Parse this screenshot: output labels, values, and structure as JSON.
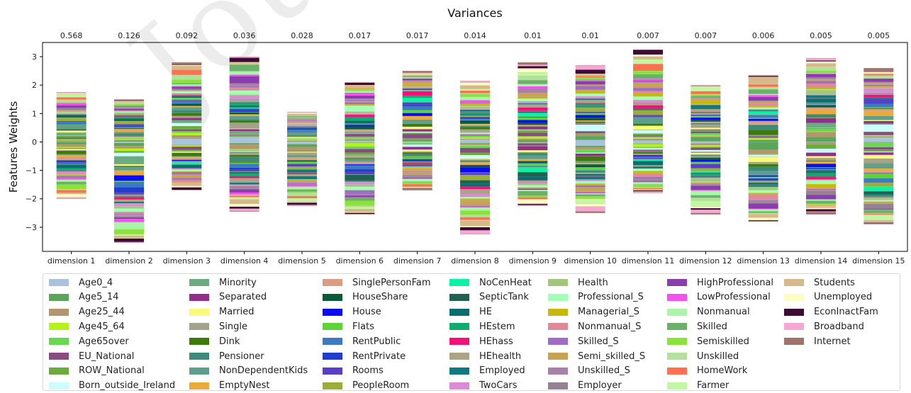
{
  "chart_data": {
    "type": "bar",
    "title": "Variances",
    "ylabel": "Features Weights",
    "xlabel": "",
    "ylim": [
      -3.85,
      3.5
    ],
    "yticks": [
      -3,
      -2,
      -1,
      0,
      1,
      2,
      3
    ],
    "categories": [
      "dimension 1",
      "dimension 2",
      "dimension 3",
      "dimension 4",
      "dimension 5",
      "dimension 6",
      "dimension 7",
      "dimension 8",
      "dimension 9",
      "dimension 10",
      "dimension 11",
      "dimension 12",
      "dimension 13",
      "dimension 14",
      "dimension 15"
    ],
    "variances": [
      "0.568",
      "0.126",
      "0.092",
      "0.036",
      "0.028",
      "0.017",
      "0.017",
      "0.014",
      "0.01",
      "0.01",
      "0.007",
      "0.007",
      "0.006",
      "0.005",
      "0.005"
    ],
    "legend_placement": "bottom",
    "grid": false,
    "stack_extents": [
      {
        "pos": 1.75,
        "neg": -2.0
      },
      {
        "pos": 1.5,
        "neg": -3.55
      },
      {
        "pos": 2.8,
        "neg": -1.7
      },
      {
        "pos": 3.0,
        "neg": -2.45
      },
      {
        "pos": 1.05,
        "neg": -2.25
      },
      {
        "pos": 2.1,
        "neg": -2.55
      },
      {
        "pos": 2.5,
        "neg": -1.7
      },
      {
        "pos": 2.15,
        "neg": -3.25
      },
      {
        "pos": 2.8,
        "neg": -2.25
      },
      {
        "pos": 2.7,
        "neg": -2.5
      },
      {
        "pos": 3.25,
        "neg": -1.8
      },
      {
        "pos": 2.0,
        "neg": -2.55
      },
      {
        "pos": 2.35,
        "neg": -2.8
      },
      {
        "pos": 2.95,
        "neg": -2.55
      },
      {
        "pos": 2.6,
        "neg": -2.9
      }
    ],
    "series": [
      {
        "name": "Age0_4",
        "color": "#a9c2de"
      },
      {
        "name": "Age5_14",
        "color": "#5aa55a"
      },
      {
        "name": "Age25_44",
        "color": "#b2976e"
      },
      {
        "name": "Age45_64",
        "color": "#b4f21a"
      },
      {
        "name": "Age65over",
        "color": "#66d94f"
      },
      {
        "name": "EU_National",
        "color": "#8a4a82"
      },
      {
        "name": "ROW_National",
        "color": "#6cab3c"
      },
      {
        "name": "Born_outside_Ireland",
        "color": "#ccfcfc"
      },
      {
        "name": "Minority",
        "color": "#6bab80"
      },
      {
        "name": "Separated",
        "color": "#942e8c"
      },
      {
        "name": "Married",
        "color": "#fafa7a"
      },
      {
        "name": "Single",
        "color": "#a3a38c"
      },
      {
        "name": "Dink",
        "color": "#3d7a0a"
      },
      {
        "name": "Pensioner",
        "color": "#3d8a7a"
      },
      {
        "name": "NonDependentKids",
        "color": "#5e9e8c"
      },
      {
        "name": "EmptyNest",
        "color": "#ebab38"
      },
      {
        "name": "SinglePersonFam",
        "color": "#db9c82"
      },
      {
        "name": "HouseShare",
        "color": "#0a5c38"
      },
      {
        "name": "House",
        "color": "#0a0af5"
      },
      {
        "name": "Flats",
        "color": "#5cd633"
      },
      {
        "name": "RentPublic",
        "color": "#3d7ac4"
      },
      {
        "name": "RentPrivate",
        "color": "#1f3dd1"
      },
      {
        "name": "Rooms",
        "color": "#5c3dc7"
      },
      {
        "name": "PeopleRoom",
        "color": "#9cad38"
      },
      {
        "name": "NoCenHeat",
        "color": "#0af2a3"
      },
      {
        "name": "SepticTank",
        "color": "#1f6152"
      },
      {
        "name": "HE",
        "color": "#0a6e6e"
      },
      {
        "name": "HEstem",
        "color": "#0fab6e"
      },
      {
        "name": "HEhass",
        "color": "#f50f7a"
      },
      {
        "name": "HEhealth",
        "color": "#ada385"
      },
      {
        "name": "Employed",
        "color": "#0f7a80"
      },
      {
        "name": "TwoCars",
        "color": "#db8ad6"
      },
      {
        "name": "Health",
        "color": "#a3c77a"
      },
      {
        "name": "Professional_S",
        "color": "#a3ffb8"
      },
      {
        "name": "Managerial_S",
        "color": "#c7b80a"
      },
      {
        "name": "Nonmanual_S",
        "color": "#e08a99"
      },
      {
        "name": "Skilled_S",
        "color": "#9e6ec7"
      },
      {
        "name": "Semi_skilled_S",
        "color": "#c7a352"
      },
      {
        "name": "Unskilled_S",
        "color": "#a880a8"
      },
      {
        "name": "Employer",
        "color": "#948294"
      },
      {
        "name": "HighProfessional",
        "color": "#8a3dad"
      },
      {
        "name": "LowProfessional",
        "color": "#f54ff0"
      },
      {
        "name": "Nonmanual",
        "color": "#abf5ab"
      },
      {
        "name": "Skilled",
        "color": "#6bb06b"
      },
      {
        "name": "Semiskilled",
        "color": "#8ae338"
      },
      {
        "name": "Unskilled",
        "color": "#b3e09c"
      },
      {
        "name": "HomeWork",
        "color": "#ff704f"
      },
      {
        "name": "Farmer",
        "color": "#c2f7a3"
      },
      {
        "name": "Students",
        "color": "#d6b88a"
      },
      {
        "name": "Unemployed",
        "color": "#fcfcc4"
      },
      {
        "name": "EconInactFam",
        "color": "#3d0a38"
      },
      {
        "name": "Broadband",
        "color": "#f5a8d1"
      },
      {
        "name": "Internet",
        "color": "#9e736b"
      }
    ]
  }
}
